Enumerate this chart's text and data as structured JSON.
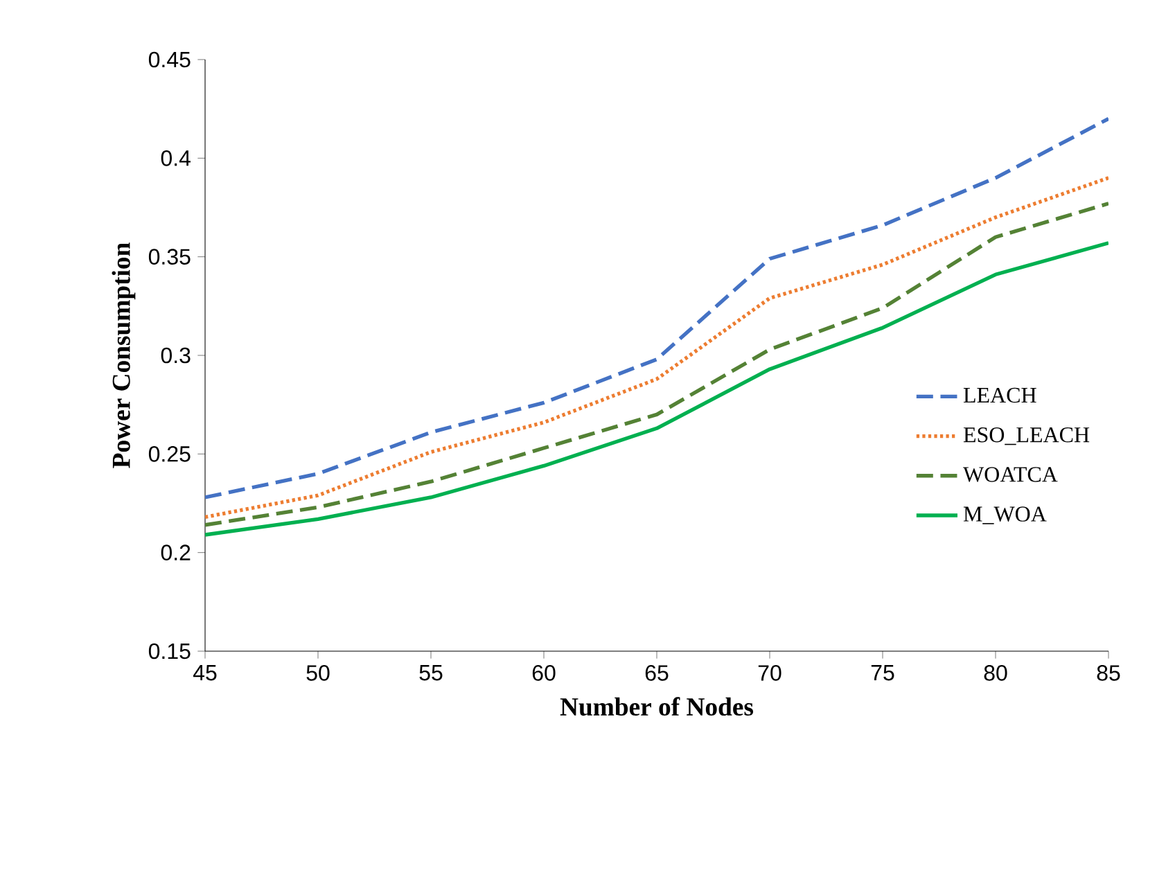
{
  "chart_data": {
    "type": "line",
    "xlabel": "Number of Nodes",
    "ylabel": "Power Consumption",
    "x": [
      45,
      50,
      55,
      60,
      65,
      70,
      75,
      80,
      85
    ],
    "xlim": [
      45,
      85
    ],
    "xticks": [
      45,
      50,
      55,
      60,
      65,
      70,
      75,
      80,
      85
    ],
    "ylim": [
      0.15,
      0.45
    ],
    "yticks": [
      0.15,
      0.2,
      0.25,
      0.3,
      0.35,
      0.4,
      0.45
    ],
    "grid": false,
    "legend": "right",
    "marker": "none",
    "series": [
      {
        "name": "LEACH",
        "color": "#4472c4",
        "line_style": "dashed",
        "values": [
          0.228,
          0.24,
          0.261,
          0.276,
          0.298,
          0.349,
          0.366,
          0.39,
          0.42
        ]
      },
      {
        "name": "ESO_LEACH",
        "color": "#ed7d31",
        "line_style": "dotted",
        "values": [
          0.218,
          0.229,
          0.251,
          0.266,
          0.288,
          0.329,
          0.346,
          0.37,
          0.39
        ]
      },
      {
        "name": "WOATCA",
        "color": "#548235",
        "line_style": "dashed",
        "values": [
          0.214,
          0.223,
          0.236,
          0.253,
          0.27,
          0.303,
          0.324,
          0.36,
          0.377
        ]
      },
      {
        "name": "M_WOA",
        "color": "#00b050",
        "line_style": "solid",
        "values": [
          0.209,
          0.217,
          0.228,
          0.244,
          0.263,
          0.293,
          0.314,
          0.341,
          0.357
        ]
      }
    ]
  }
}
